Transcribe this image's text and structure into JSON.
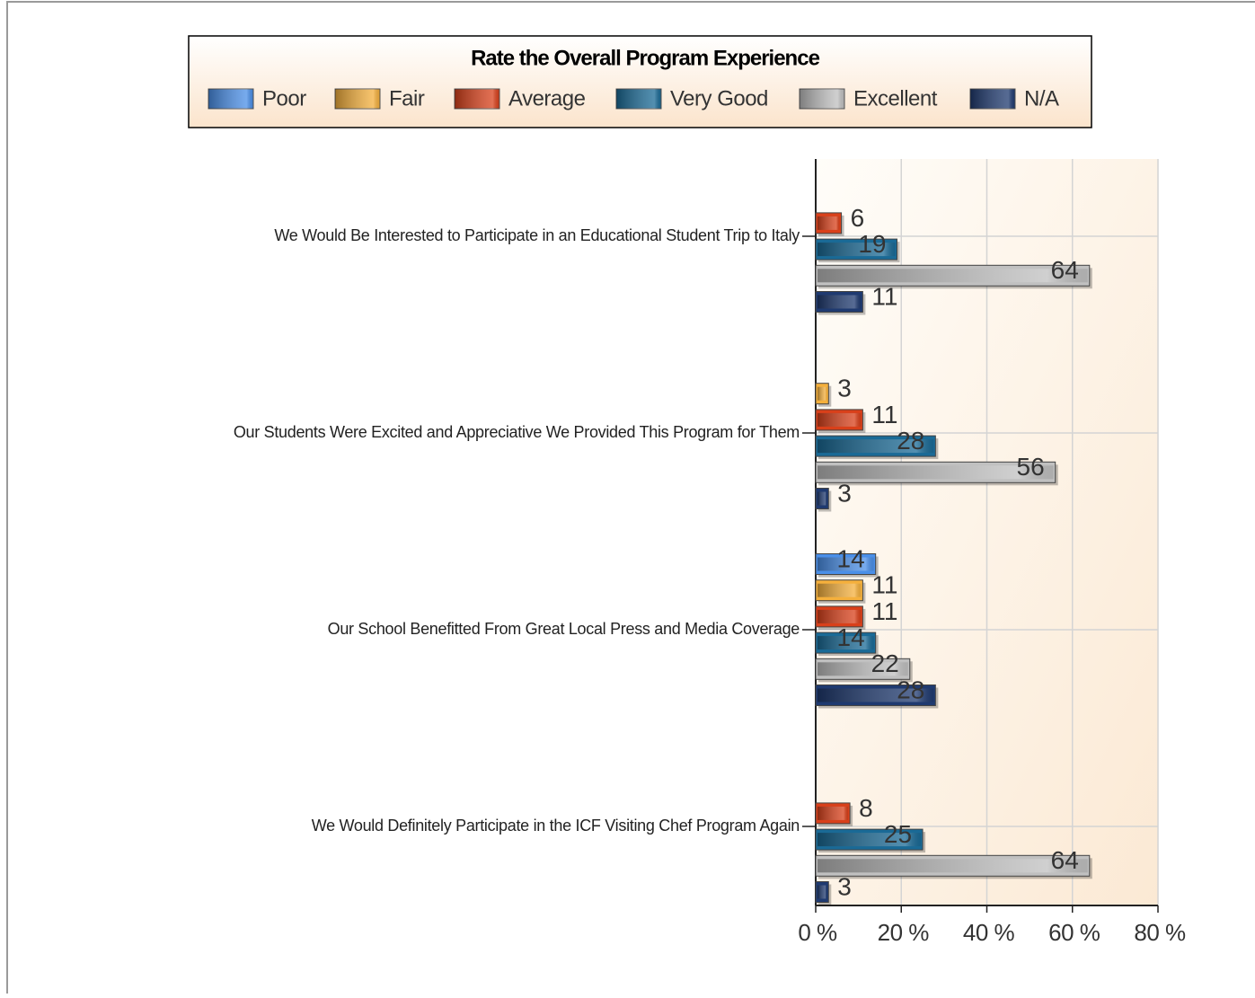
{
  "chart_data": {
    "type": "hbar",
    "title": "Rate the Overall Program Experience",
    "categories": [
      "We Would Be Interested to Participate in an Educational Student Trip to Italy",
      "Our Students Were Excited and Appreciative We Provided This Program for Them",
      "Our School Benefitted From Great Local Press and Media Coverage",
      "We Would Definitely Participate in the ICF Visiting Chef Program Again"
    ],
    "series": [
      {
        "name": "Poor",
        "color": "#4a8fe8",
        "values": [
          null,
          null,
          14,
          null
        ]
      },
      {
        "name": "Fair",
        "color": "#f5b03c",
        "values": [
          null,
          3,
          11,
          null
        ]
      },
      {
        "name": "Average",
        "color": "#d9401a",
        "values": [
          6,
          11,
          11,
          8
        ]
      },
      {
        "name": "Very Good",
        "color": "#1a6a96",
        "values": [
          19,
          28,
          14,
          25
        ]
      },
      {
        "name": "Excellent",
        "color": "#c0c0c0",
        "values": [
          64,
          56,
          22,
          64
        ]
      },
      {
        "name": "N/A",
        "color": "#1f3a70",
        "values": [
          11,
          3,
          28,
          3
        ]
      }
    ],
    "xlim": [
      0,
      80
    ],
    "xticks": [
      {
        "value": 0,
        "label": "0 %"
      },
      {
        "value": 20,
        "label": "20 %"
      },
      {
        "value": 40,
        "label": "40 %"
      },
      {
        "value": 60,
        "label": "60 %"
      },
      {
        "value": 80,
        "label": "80 %"
      }
    ],
    "grid": true,
    "legend": "top"
  }
}
